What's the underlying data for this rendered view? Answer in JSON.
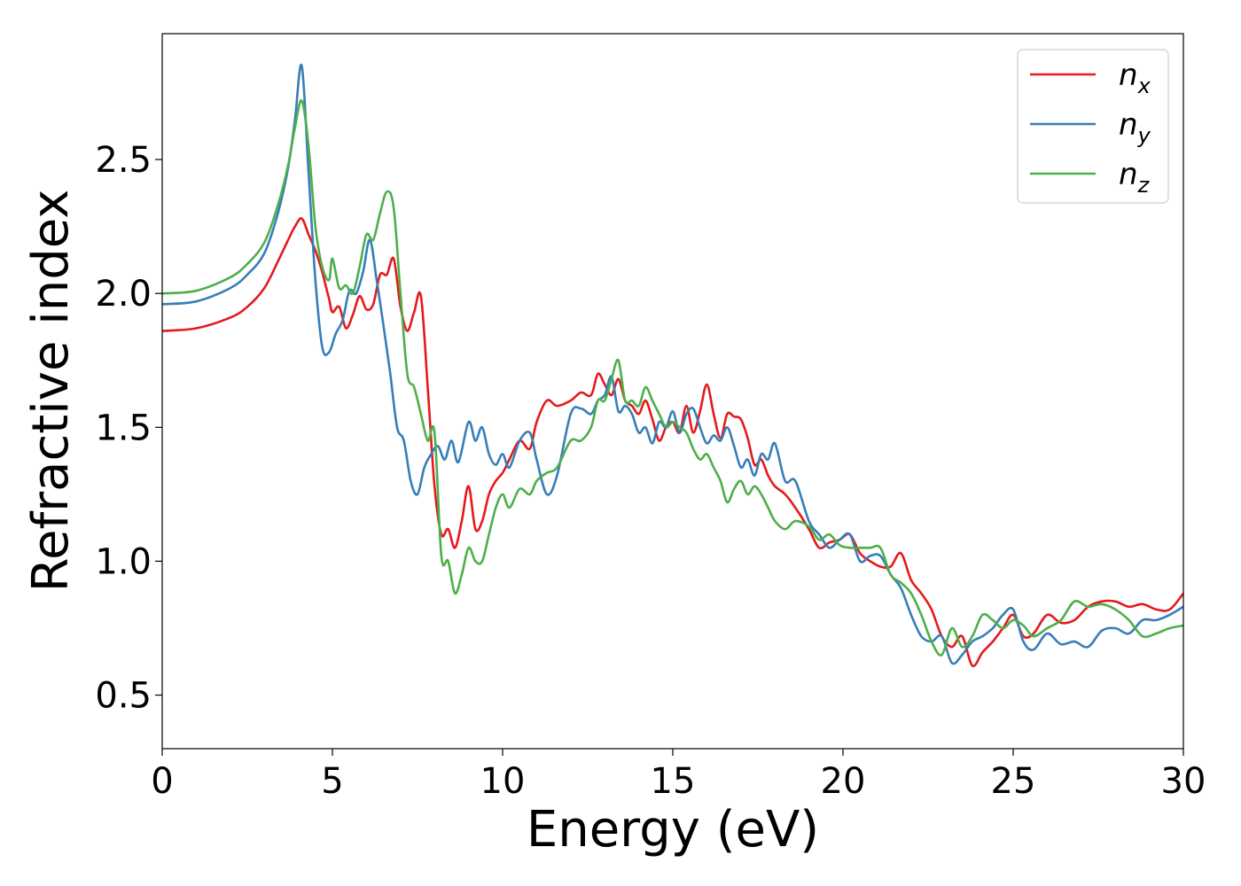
{
  "chart_data": {
    "type": "line",
    "title": "",
    "xlabel": "Energy (eV)",
    "ylabel": "Refractive index",
    "xlim": [
      0,
      30
    ],
    "ylim": [
      0.3,
      2.97
    ],
    "xticks": [
      0,
      5,
      10,
      15,
      20,
      25,
      30
    ],
    "yticks": [
      0.5,
      1.0,
      1.5,
      2.0,
      2.5
    ],
    "xtick_labels": [
      "0",
      "5",
      "10",
      "15",
      "20",
      "25",
      "30"
    ],
    "ytick_labels": [
      "0.5",
      "1.0",
      "1.5",
      "2.0",
      "2.5"
    ],
    "grid": false,
    "legend_position": "top-right",
    "series": [
      {
        "name": "n_x",
        "label_main": "n",
        "label_sub": "x",
        "color": "#e41a1c",
        "x": [
          0,
          1,
          2,
          2.5,
          3,
          3.4,
          3.7,
          3.9,
          4.1,
          4.3,
          4.5,
          4.7,
          4.9,
          5.0,
          5.2,
          5.4,
          5.6,
          5.8,
          6.0,
          6.2,
          6.4,
          6.6,
          6.8,
          7.0,
          7.2,
          7.4,
          7.6,
          7.8,
          8.0,
          8.2,
          8.4,
          8.6,
          8.8,
          9.0,
          9.2,
          9.4,
          9.6,
          9.8,
          10.0,
          10.2,
          10.5,
          10.8,
          11.0,
          11.3,
          11.6,
          12.0,
          12.3,
          12.6,
          12.8,
          13.0,
          13.2,
          13.4,
          13.6,
          13.8,
          14.0,
          14.2,
          14.4,
          14.6,
          14.8,
          15.0,
          15.2,
          15.4,
          15.6,
          15.8,
          16.0,
          16.2,
          16.4,
          16.6,
          16.8,
          17.0,
          17.2,
          17.4,
          17.6,
          17.8,
          18.0,
          18.3,
          18.6,
          19.0,
          19.3,
          19.6,
          19.9,
          20.2,
          20.5,
          20.8,
          21.1,
          21.4,
          21.7,
          22.0,
          22.3,
          22.6,
          22.9,
          23.2,
          23.5,
          23.8,
          24.1,
          24.4,
          24.7,
          25.0,
          25.3,
          25.6,
          26.0,
          26.4,
          26.8,
          27.2,
          27.6,
          28.0,
          28.4,
          28.8,
          29.2,
          29.6,
          30.0
        ],
        "y": [
          1.86,
          1.87,
          1.91,
          1.95,
          2.02,
          2.12,
          2.2,
          2.25,
          2.28,
          2.22,
          2.16,
          2.08,
          1.98,
          1.93,
          1.95,
          1.87,
          1.92,
          1.99,
          1.94,
          1.96,
          2.07,
          2.07,
          2.13,
          1.95,
          1.86,
          1.93,
          1.99,
          1.65,
          1.28,
          1.1,
          1.12,
          1.05,
          1.15,
          1.28,
          1.12,
          1.15,
          1.25,
          1.3,
          1.33,
          1.38,
          1.45,
          1.42,
          1.52,
          1.6,
          1.58,
          1.6,
          1.63,
          1.62,
          1.7,
          1.66,
          1.62,
          1.68,
          1.6,
          1.58,
          1.55,
          1.6,
          1.53,
          1.45,
          1.5,
          1.52,
          1.48,
          1.58,
          1.48,
          1.56,
          1.66,
          1.55,
          1.46,
          1.55,
          1.54,
          1.53,
          1.46,
          1.36,
          1.38,
          1.32,
          1.28,
          1.25,
          1.2,
          1.12,
          1.05,
          1.07,
          1.08,
          1.1,
          1.03,
          1.0,
          0.98,
          0.98,
          1.03,
          0.93,
          0.88,
          0.82,
          0.72,
          0.68,
          0.72,
          0.61,
          0.66,
          0.7,
          0.75,
          0.8,
          0.72,
          0.73,
          0.8,
          0.77,
          0.78,
          0.83,
          0.85,
          0.85,
          0.83,
          0.84,
          0.82,
          0.82,
          0.88
        ]
      },
      {
        "name": "n_y",
        "label_main": "n",
        "label_sub": "y",
        "color": "#377eb8",
        "x": [
          0,
          1,
          2,
          2.5,
          3,
          3.4,
          3.7,
          3.9,
          4.1,
          4.3,
          4.5,
          4.7,
          4.9,
          5.1,
          5.3,
          5.5,
          5.7,
          5.9,
          6.1,
          6.3,
          6.5,
          6.7,
          6.9,
          7.1,
          7.3,
          7.5,
          7.7,
          7.9,
          8.1,
          8.3,
          8.5,
          8.7,
          9.0,
          9.2,
          9.4,
          9.6,
          9.8,
          10.0,
          10.2,
          10.5,
          10.8,
          11.0,
          11.3,
          11.6,
          12.0,
          12.3,
          12.6,
          12.8,
          13.0,
          13.2,
          13.4,
          13.6,
          13.8,
          14.0,
          14.2,
          14.4,
          14.6,
          14.8,
          15.0,
          15.2,
          15.4,
          15.6,
          15.8,
          16.0,
          16.2,
          16.4,
          16.6,
          16.8,
          17.0,
          17.2,
          17.4,
          17.6,
          17.8,
          18.0,
          18.3,
          18.6,
          19.0,
          19.3,
          19.6,
          19.9,
          20.2,
          20.5,
          20.8,
          21.1,
          21.4,
          21.7,
          22.0,
          22.3,
          22.6,
          22.9,
          23.2,
          23.5,
          23.8,
          24.1,
          24.4,
          24.7,
          25.0,
          25.3,
          25.6,
          26.0,
          26.4,
          26.8,
          27.2,
          27.6,
          28.0,
          28.4,
          28.8,
          29.2,
          29.6,
          30.0
        ],
        "y": [
          1.96,
          1.97,
          2.02,
          2.07,
          2.15,
          2.3,
          2.47,
          2.65,
          2.85,
          2.45,
          2.05,
          1.8,
          1.78,
          1.85,
          1.9,
          2.01,
          2.0,
          2.08,
          2.2,
          2.05,
          1.88,
          1.7,
          1.5,
          1.45,
          1.3,
          1.25,
          1.35,
          1.4,
          1.43,
          1.38,
          1.45,
          1.37,
          1.52,
          1.45,
          1.5,
          1.4,
          1.36,
          1.4,
          1.35,
          1.45,
          1.48,
          1.38,
          1.25,
          1.32,
          1.55,
          1.57,
          1.55,
          1.6,
          1.62,
          1.69,
          1.56,
          1.58,
          1.55,
          1.48,
          1.5,
          1.44,
          1.52,
          1.5,
          1.56,
          1.48,
          1.55,
          1.57,
          1.5,
          1.44,
          1.47,
          1.45,
          1.5,
          1.43,
          1.35,
          1.38,
          1.32,
          1.4,
          1.38,
          1.44,
          1.3,
          1.3,
          1.15,
          1.1,
          1.05,
          1.08,
          1.1,
          1.0,
          1.02,
          1.02,
          0.95,
          0.9,
          0.8,
          0.72,
          0.7,
          0.72,
          0.62,
          0.65,
          0.7,
          0.72,
          0.75,
          0.8,
          0.82,
          0.7,
          0.67,
          0.73,
          0.69,
          0.7,
          0.68,
          0.74,
          0.75,
          0.73,
          0.78,
          0.78,
          0.8,
          0.83
        ]
      },
      {
        "name": "n_z",
        "label_main": "n",
        "label_sub": "z",
        "color": "#4daf4a",
        "x": [
          0,
          1,
          2,
          2.5,
          3,
          3.4,
          3.7,
          3.9,
          4.1,
          4.3,
          4.5,
          4.7,
          4.9,
          5.0,
          5.2,
          5.4,
          5.6,
          5.8,
          6.0,
          6.2,
          6.4,
          6.6,
          6.8,
          7.0,
          7.2,
          7.4,
          7.6,
          7.8,
          8.0,
          8.2,
          8.4,
          8.6,
          8.8,
          9.0,
          9.2,
          9.4,
          9.6,
          9.8,
          10.0,
          10.2,
          10.5,
          10.8,
          11.0,
          11.3,
          11.6,
          12.0,
          12.3,
          12.6,
          12.8,
          13.0,
          13.2,
          13.4,
          13.6,
          13.8,
          14.0,
          14.2,
          14.4,
          14.6,
          14.8,
          15.0,
          15.2,
          15.4,
          15.6,
          15.8,
          16.0,
          16.2,
          16.4,
          16.6,
          16.8,
          17.0,
          17.2,
          17.4,
          17.6,
          17.8,
          18.0,
          18.3,
          18.6,
          19.0,
          19.3,
          19.6,
          19.9,
          20.2,
          20.5,
          20.8,
          21.1,
          21.4,
          21.7,
          22.0,
          22.3,
          22.6,
          22.9,
          23.2,
          23.5,
          23.8,
          24.1,
          24.4,
          24.7,
          25.0,
          25.3,
          25.6,
          26.0,
          26.4,
          26.8,
          27.2,
          27.6,
          28.0,
          28.4,
          28.8,
          29.2,
          29.6,
          30.0
        ],
        "y": [
          2.0,
          2.01,
          2.06,
          2.11,
          2.19,
          2.33,
          2.48,
          2.62,
          2.72,
          2.55,
          2.25,
          2.1,
          2.05,
          2.13,
          2.02,
          2.03,
          2.0,
          2.1,
          2.22,
          2.2,
          2.3,
          2.38,
          2.32,
          2.0,
          1.7,
          1.65,
          1.55,
          1.45,
          1.48,
          1.02,
          1.0,
          0.88,
          0.95,
          1.05,
          1.0,
          1.0,
          1.1,
          1.2,
          1.25,
          1.2,
          1.27,
          1.25,
          1.3,
          1.33,
          1.35,
          1.45,
          1.45,
          1.5,
          1.6,
          1.6,
          1.68,
          1.75,
          1.6,
          1.6,
          1.58,
          1.65,
          1.6,
          1.55,
          1.5,
          1.52,
          1.5,
          1.48,
          1.42,
          1.38,
          1.4,
          1.35,
          1.3,
          1.22,
          1.27,
          1.3,
          1.25,
          1.28,
          1.25,
          1.2,
          1.15,
          1.12,
          1.15,
          1.13,
          1.08,
          1.1,
          1.06,
          1.05,
          1.05,
          1.05,
          1.05,
          0.95,
          0.92,
          0.88,
          0.8,
          0.7,
          0.65,
          0.75,
          0.68,
          0.72,
          0.8,
          0.78,
          0.75,
          0.78,
          0.76,
          0.72,
          0.75,
          0.78,
          0.85,
          0.83,
          0.84,
          0.82,
          0.78,
          0.72,
          0.73,
          0.75,
          0.76
        ]
      }
    ]
  }
}
